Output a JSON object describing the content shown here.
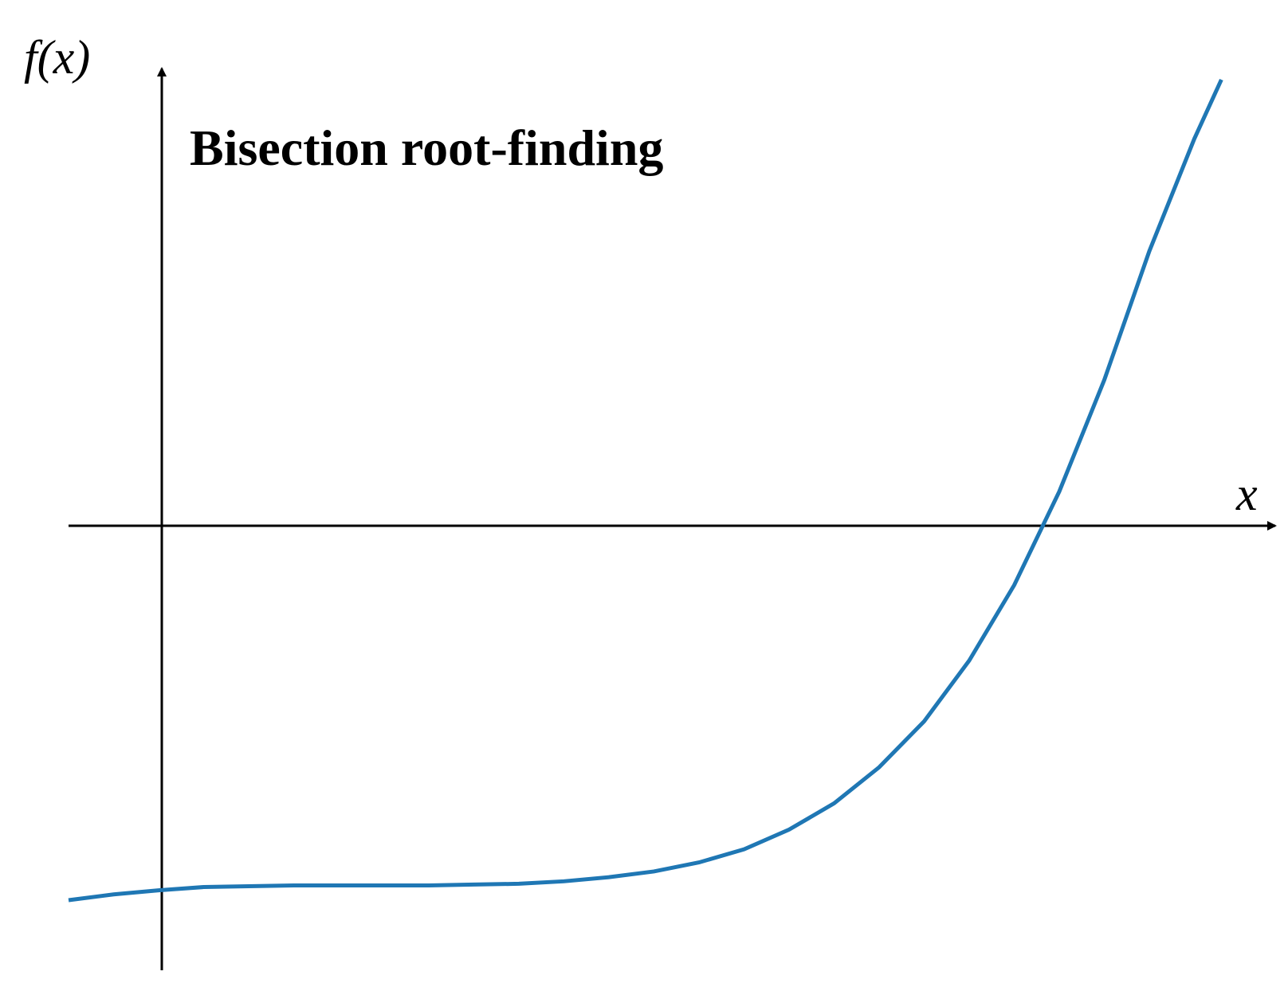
{
  "chart_data": {
    "type": "line",
    "title": "Bisection root-finding",
    "xlabel": "x",
    "ylabel": "f(x)",
    "xlim": [
      -1.0,
      12.0
    ],
    "ylim": [
      -5.0,
      5.0
    ],
    "grid": false,
    "axes_style": "arrows-through-origin",
    "series": [
      {
        "color": "#1f77b4",
        "x": [
          -1.0,
          -0.5,
          0.0,
          0.5,
          1.0,
          1.5,
          2.0,
          2.5,
          3.0,
          3.5,
          4.0,
          4.5,
          5.0,
          5.5,
          6.0,
          6.5,
          7.0,
          7.5,
          8.0,
          8.5,
          9.0,
          9.5,
          10.0,
          10.5,
          11.0,
          11.5,
          11.8
        ],
        "y": [
          -5.0,
          -4.93,
          -4.88,
          -4.84,
          -4.83,
          -4.82,
          -4.82,
          -4.82,
          -4.82,
          -4.81,
          -4.8,
          -4.77,
          -4.72,
          -4.65,
          -4.54,
          -4.38,
          -4.14,
          -3.82,
          -3.38,
          -2.82,
          -2.08,
          -1.16,
          -0.02,
          1.34,
          2.91,
          4.28,
          5.0
        ]
      }
    ]
  }
}
